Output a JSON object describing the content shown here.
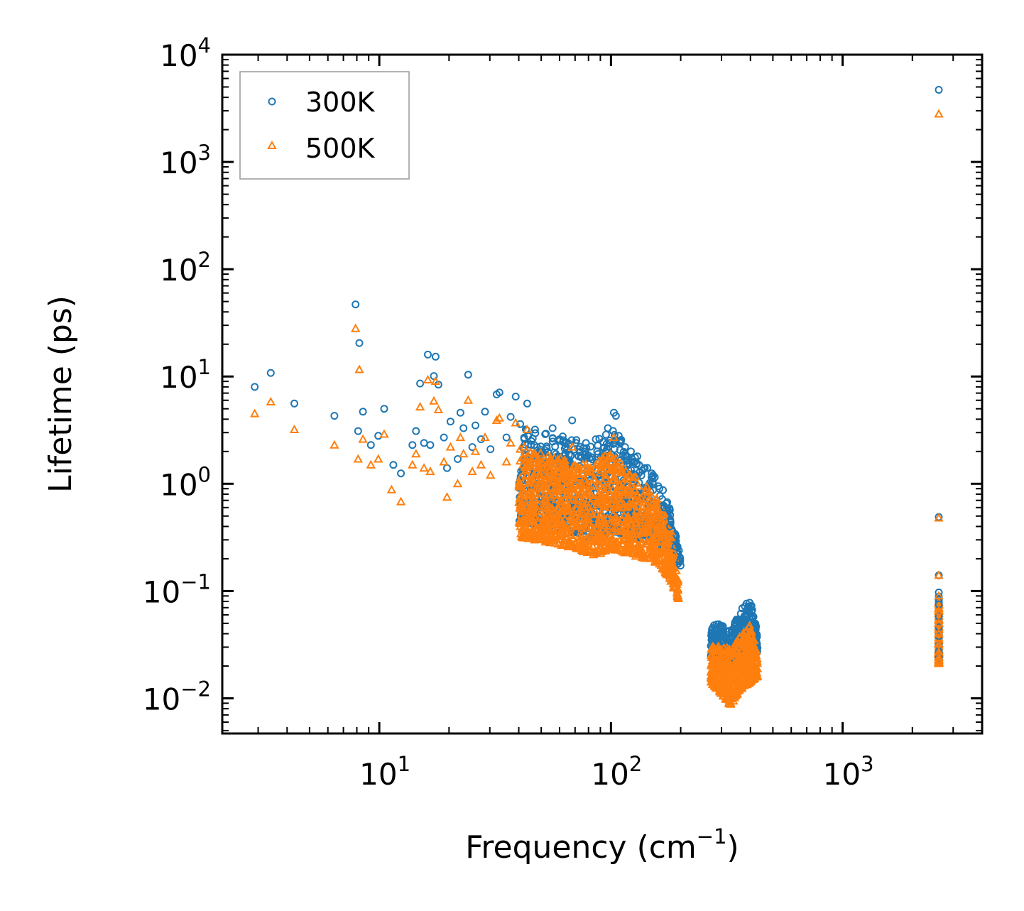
{
  "chart_data": {
    "type": "scatter",
    "title": "",
    "xlabel": "Frequency (cm",
    "xlabel_sup": "−1",
    "xlabel_end": ")",
    "ylabel": "Lifetime (ps)",
    "xscale": "log",
    "yscale": "log",
    "xlim": [
      2.1,
      4000
    ],
    "ylim": [
      0.0047,
      10000
    ],
    "x_ticks": [
      {
        "value": 10,
        "base": "10",
        "exp": "1"
      },
      {
        "value": 100,
        "base": "10",
        "exp": "2"
      },
      {
        "value": 1000,
        "base": "10",
        "exp": "3"
      }
    ],
    "y_ticks": [
      {
        "value": 0.01,
        "base": "10",
        "exp": "−2"
      },
      {
        "value": 0.1,
        "base": "10",
        "exp": "−1"
      },
      {
        "value": 1,
        "base": "10",
        "exp": "0"
      },
      {
        "value": 10,
        "base": "10",
        "exp": "1"
      },
      {
        "value": 100,
        "base": "10",
        "exp": "2"
      },
      {
        "value": 1000,
        "base": "10",
        "exp": "3"
      },
      {
        "value": 10000,
        "base": "10",
        "exp": "4"
      }
    ],
    "legend_position": "top-left",
    "series": [
      {
        "name": "300K",
        "marker": "circle-open",
        "color": "#1f77b4",
        "points": [
          [
            2.9,
            8.0
          ],
          [
            3.4,
            10.8
          ],
          [
            4.3,
            5.6
          ],
          [
            6.4,
            4.3
          ],
          [
            7.9,
            47
          ],
          [
            8.1,
            3.1
          ],
          [
            8.2,
            20.5
          ],
          [
            8.5,
            4.7
          ],
          [
            9.2,
            2.3
          ],
          [
            9.9,
            2.8
          ],
          [
            10.5,
            5.0
          ],
          [
            11.5,
            1.5
          ],
          [
            12.4,
            1.25
          ],
          [
            13.9,
            2.3
          ],
          [
            14.4,
            3.1
          ],
          [
            15.0,
            8.6
          ],
          [
            15.6,
            2.4
          ],
          [
            16.2,
            16
          ],
          [
            16.6,
            2.3
          ],
          [
            17.2,
            10.1
          ],
          [
            17.5,
            15.3
          ],
          [
            18.0,
            8.4
          ],
          [
            19.0,
            2.7
          ],
          [
            19.6,
            1.4
          ],
          [
            20.3,
            3.8
          ],
          [
            21.8,
            1.7
          ],
          [
            22.4,
            4.6
          ],
          [
            23.1,
            3.3
          ],
          [
            24.2,
            10.4
          ],
          [
            25.2,
            2.2
          ],
          [
            26.0,
            3.5
          ],
          [
            27.5,
            2.6
          ],
          [
            28.6,
            4.7
          ],
          [
            30.2,
            2.1
          ],
          [
            32.1,
            6.8
          ],
          [
            33.0,
            7.1
          ],
          [
            35.4,
            2.7
          ],
          [
            36.9,
            4.2
          ],
          [
            38.8,
            6.5
          ],
          [
            40.6,
            3.6
          ],
          [
            43.5,
            5.6
          ],
          [
            47.0,
            3.2
          ],
          [
            52.0,
            2.9
          ],
          [
            56.0,
            3.3
          ],
          [
            60.0,
            2.6
          ],
          [
            68.0,
            3.9
          ],
          [
            78.0,
            2.4
          ],
          [
            86.0,
            2.6
          ],
          [
            97.0,
            3.3
          ],
          [
            103.0,
            4.6
          ],
          [
            105.0,
            4.3
          ],
          [
            108.0,
            2.8
          ],
          [
            115.0,
            2.2
          ],
          [
            122.0,
            2.0
          ],
          [
            130.0,
            1.8
          ],
          [
            140.0,
            1.4
          ],
          [
            152.0,
            1.2
          ],
          [
            160.0,
            0.95
          ],
          [
            170.0,
            0.6
          ],
          [
            180.0,
            0.4
          ],
          [
            190.0,
            0.26
          ],
          [
            199.0,
            0.19
          ],
          [
            2600,
            4700
          ],
          [
            2600,
            0.49
          ],
          [
            2600,
            0.14
          ],
          [
            2600,
            0.097
          ],
          [
            2600,
            0.075
          ],
          [
            2600,
            0.058
          ],
          [
            2600,
            0.046
          ],
          [
            2600,
            0.038
          ],
          [
            2600,
            0.031
          ],
          [
            2600,
            0.027
          ],
          [
            2600,
            0.024
          ]
        ]
      },
      {
        "name": "500K",
        "marker": "triangle-open",
        "color": "#ff7f0e",
        "points": [
          [
            2.9,
            4.5
          ],
          [
            3.4,
            5.8
          ],
          [
            4.3,
            3.2
          ],
          [
            6.4,
            2.3
          ],
          [
            7.9,
            28
          ],
          [
            8.1,
            1.7
          ],
          [
            8.2,
            11.6
          ],
          [
            8.5,
            2.6
          ],
          [
            9.2,
            1.5
          ],
          [
            9.9,
            1.7
          ],
          [
            10.5,
            2.9
          ],
          [
            11.3,
            0.88
          ],
          [
            12.4,
            0.68
          ],
          [
            13.9,
            1.5
          ],
          [
            14.4,
            1.9
          ],
          [
            15.0,
            5.2
          ],
          [
            15.6,
            1.4
          ],
          [
            16.2,
            9.3
          ],
          [
            16.6,
            1.3
          ],
          [
            17.2,
            5.9
          ],
          [
            17.5,
            9.0
          ],
          [
            18.0,
            4.9
          ],
          [
            19.0,
            1.6
          ],
          [
            19.6,
            0.75
          ],
          [
            20.3,
            2.2
          ],
          [
            21.8,
            1.0
          ],
          [
            22.4,
            2.7
          ],
          [
            23.1,
            1.9
          ],
          [
            24.2,
            6.0
          ],
          [
            25.2,
            1.3
          ],
          [
            26.0,
            2.0
          ],
          [
            27.5,
            1.5
          ],
          [
            28.6,
            2.7
          ],
          [
            30.2,
            1.2
          ],
          [
            32.1,
            3.9
          ],
          [
            33.0,
            4.1
          ],
          [
            35.4,
            1.6
          ],
          [
            36.9,
            2.4
          ],
          [
            38.8,
            3.7
          ],
          [
            40.6,
            2.1
          ],
          [
            43.5,
            3.2
          ],
          [
            47.0,
            1.9
          ],
          [
            68.0,
            2.2
          ],
          [
            86.0,
            1.5
          ],
          [
            103.0,
            2.7
          ],
          [
            190.0,
            0.12
          ],
          [
            195.0,
            0.085
          ],
          [
            2600,
            2800
          ],
          [
            2600,
            0.48
          ],
          [
            2600,
            0.14
          ],
          [
            2600,
            0.09
          ],
          [
            2600,
            0.065
          ],
          [
            2600,
            0.05
          ],
          [
            2600,
            0.04
          ],
          [
            2600,
            0.032
          ],
          [
            2600,
            0.027
          ],
          [
            2600,
            0.024
          ],
          [
            2600,
            0.022
          ]
        ]
      }
    ],
    "clusters": [
      {
        "series": "300K",
        "lower": [
          [
            40,
            0.45
          ],
          [
            55,
            0.38
          ],
          [
            70,
            0.35
          ],
          [
            85,
            0.3
          ],
          [
            100,
            0.36
          ],
          [
            120,
            0.33
          ],
          [
            140,
            0.3
          ],
          [
            160,
            0.28
          ],
          [
            180,
            0.22
          ],
          [
            200,
            0.17
          ]
        ],
        "upper": [
          [
            40,
            3.4
          ],
          [
            55,
            2.9
          ],
          [
            70,
            2.7
          ],
          [
            85,
            2.4
          ],
          [
            100,
            3.6
          ],
          [
            120,
            2.0
          ],
          [
            140,
            1.5
          ],
          [
            160,
            1.1
          ],
          [
            180,
            0.62
          ],
          [
            200,
            0.2
          ]
        ],
        "count": 900
      },
      {
        "series": "500K",
        "lower": [
          [
            40,
            0.32
          ],
          [
            55,
            0.28
          ],
          [
            70,
            0.25
          ],
          [
            85,
            0.21
          ],
          [
            100,
            0.25
          ],
          [
            120,
            0.22
          ],
          [
            140,
            0.2
          ],
          [
            160,
            0.18
          ],
          [
            180,
            0.13
          ],
          [
            195,
            0.085
          ]
        ],
        "upper": [
          [
            40,
            2.3
          ],
          [
            55,
            1.8
          ],
          [
            70,
            1.65
          ],
          [
            85,
            1.55
          ],
          [
            100,
            2.0
          ],
          [
            120,
            1.3
          ],
          [
            140,
            1.0
          ],
          [
            160,
            0.7
          ],
          [
            180,
            0.4
          ],
          [
            195,
            0.13
          ]
        ],
        "count": 1100
      },
      {
        "series": "300K",
        "lower": [
          [
            270,
            0.024
          ],
          [
            300,
            0.02
          ],
          [
            330,
            0.018
          ],
          [
            360,
            0.021
          ],
          [
            400,
            0.024
          ],
          [
            430,
            0.027
          ]
        ],
        "upper": [
          [
            270,
            0.05
          ],
          [
            300,
            0.05
          ],
          [
            330,
            0.042
          ],
          [
            360,
            0.065
          ],
          [
            400,
            0.085
          ],
          [
            430,
            0.04
          ]
        ],
        "count": 420
      },
      {
        "series": "500K",
        "lower": [
          [
            270,
            0.014
          ],
          [
            300,
            0.011
          ],
          [
            330,
            0.0085
          ],
          [
            360,
            0.012
          ],
          [
            400,
            0.014
          ],
          [
            430,
            0.016
          ]
        ],
        "upper": [
          [
            270,
            0.03
          ],
          [
            300,
            0.032
          ],
          [
            330,
            0.028
          ],
          [
            360,
            0.038
          ],
          [
            400,
            0.05
          ],
          [
            430,
            0.025
          ]
        ],
        "count": 480
      },
      {
        "series": "300K",
        "lower": [
          [
            2600,
            0.022
          ]
        ],
        "upper": [
          [
            2600,
            0.09
          ]
        ],
        "count": 60
      },
      {
        "series": "500K",
        "lower": [
          [
            2600,
            0.021
          ]
        ],
        "upper": [
          [
            2600,
            0.08
          ]
        ],
        "count": 60
      }
    ]
  }
}
